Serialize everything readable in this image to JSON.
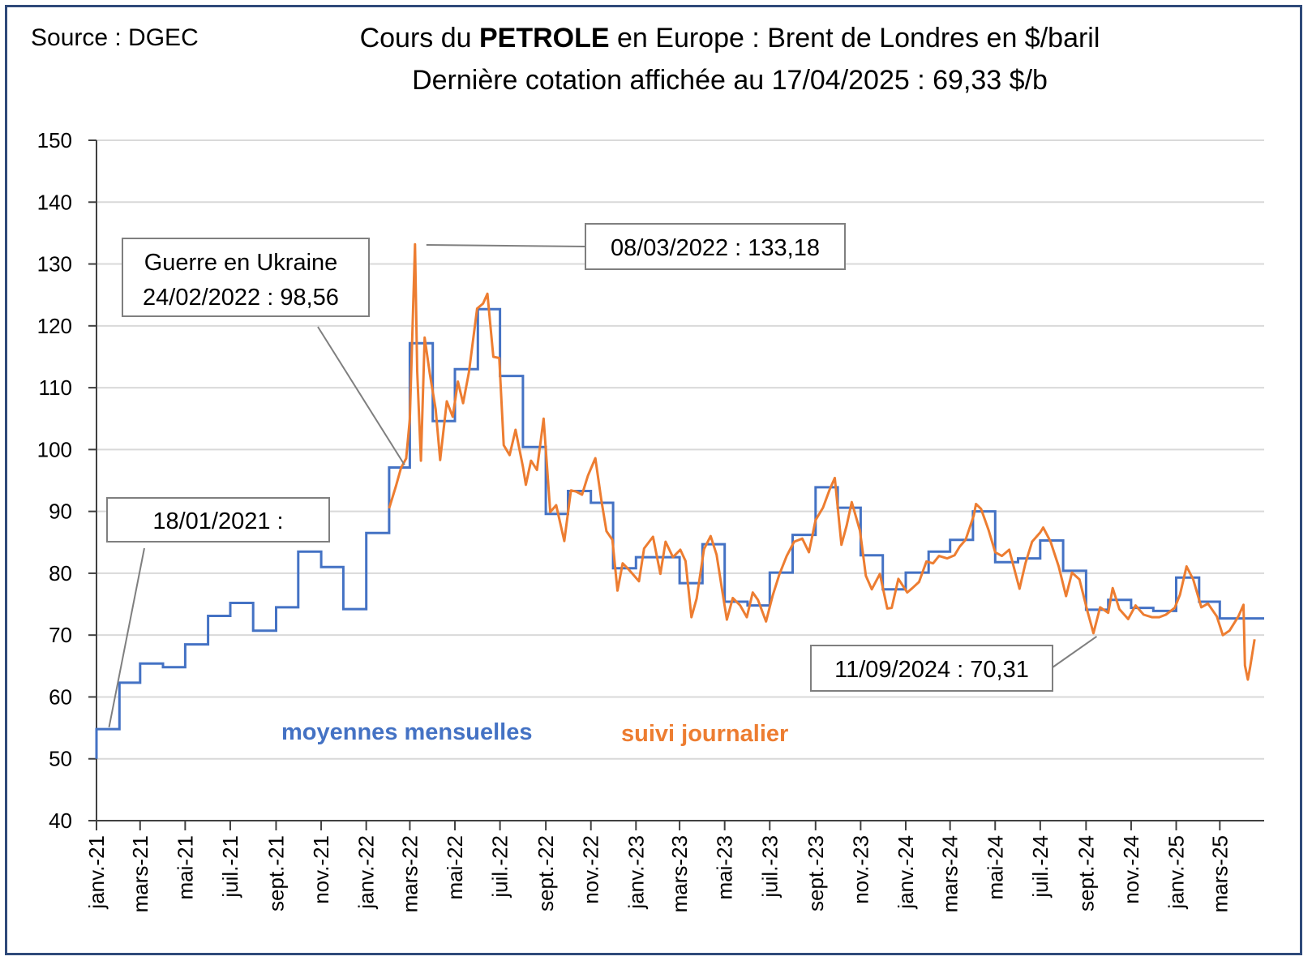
{
  "header": {
    "source": "Source : DGEC",
    "title_pre": "Cours du ",
    "title_bold": "PETROLE",
    "title_post": " en Europe : Brent de Londres en $/baril",
    "subtitle": "Dernière cotation affichée au 17/04/2025 : 69,33 $/b"
  },
  "colors": {
    "monthly": "#4472c4",
    "daily": "#ed7d31",
    "frame": "#2f4a7a",
    "grid": "#d9d9d9"
  },
  "chart_data": {
    "type": "line",
    "title": "Cours du PETROLE en Europe : Brent de Londres en $/baril",
    "ylim": [
      40,
      150
    ],
    "yticks": [
      40,
      50,
      60,
      70,
      80,
      90,
      100,
      110,
      120,
      130,
      140,
      150
    ],
    "xlim": [
      "2021-01-01",
      "2025-04-30"
    ],
    "xtick_labels": [
      "janv.-21",
      "mars-21",
      "mai-21",
      "juil.-21",
      "sept.-21",
      "nov.-21",
      "janv.-22",
      "mars-22",
      "mai-22",
      "juil.-22",
      "sept.-22",
      "nov.-22",
      "janv.-23",
      "mars-23",
      "mai-23",
      "juil.-23",
      "sept.-23",
      "nov.-23",
      "janv.-24",
      "mars-24",
      "mai-24",
      "juil.-24",
      "sept.-24",
      "nov.-24",
      "janv.-25",
      "mars-25"
    ],
    "grid": true,
    "series": [
      {
        "name": "moyennes mensuelles",
        "kind": "step",
        "months": [
          "2021-01",
          "2021-02",
          "2021-03",
          "2021-04",
          "2021-05",
          "2021-06",
          "2021-07",
          "2021-08",
          "2021-09",
          "2021-10",
          "2021-11",
          "2021-12",
          "2022-01",
          "2022-02",
          "2022-03",
          "2022-04",
          "2022-05",
          "2022-06",
          "2022-07",
          "2022-08",
          "2022-09",
          "2022-10",
          "2022-11",
          "2022-12",
          "2023-01",
          "2023-02",
          "2023-03",
          "2023-04",
          "2023-05",
          "2023-06",
          "2023-07",
          "2023-08",
          "2023-09",
          "2023-10",
          "2023-11",
          "2023-12",
          "2024-01",
          "2024-02",
          "2024-03",
          "2024-04",
          "2024-05",
          "2024-06",
          "2024-07",
          "2024-08",
          "2024-09",
          "2024-10",
          "2024-11",
          "2024-12",
          "2025-01",
          "2025-02",
          "2025-03",
          "2025-04"
        ],
        "values": [
          54.8,
          62.3,
          65.4,
          64.8,
          68.5,
          73.1,
          75.2,
          70.7,
          74.5,
          83.5,
          81.0,
          74.2,
          86.5,
          97.1,
          117.2,
          104.6,
          113.0,
          122.7,
          111.9,
          100.4,
          89.6,
          93.3,
          91.4,
          80.8,
          82.6,
          82.6,
          78.4,
          84.7,
          75.4,
          74.8,
          80.1,
          86.2,
          93.9,
          90.6,
          82.9,
          77.4,
          80.1,
          83.5,
          85.4,
          90.0,
          81.8,
          82.4,
          85.3,
          80.4,
          74.1,
          75.7,
          74.4,
          73.9,
          79.3,
          75.4,
          72.7,
          72.7
        ]
      },
      {
        "name": "suivi journalier",
        "kind": "line",
        "dates": [
          "2022-02-01",
          "2022-02-10",
          "2022-02-17",
          "2022-02-24",
          "2022-03-01",
          "2022-03-08",
          "2022-03-11",
          "2022-03-16",
          "2022-03-21",
          "2022-03-28",
          "2022-04-05",
          "2022-04-11",
          "2022-04-20",
          "2022-04-28",
          "2022-05-05",
          "2022-05-12",
          "2022-05-20",
          "2022-05-31",
          "2022-06-08",
          "2022-06-14",
          "2022-06-22",
          "2022-06-30",
          "2022-07-06",
          "2022-07-14",
          "2022-07-22",
          "2022-08-01",
          "2022-08-05",
          "2022-08-12",
          "2022-08-20",
          "2022-08-29",
          "2022-09-07",
          "2022-09-15",
          "2022-09-26",
          "2022-10-05",
          "2022-10-12",
          "2022-10-20",
          "2022-10-28",
          "2022-11-07",
          "2022-11-15",
          "2022-11-22",
          "2022-11-30",
          "2022-12-07",
          "2022-12-14",
          "2022-12-23",
          "2023-01-05",
          "2023-01-12",
          "2023-01-24",
          "2023-02-03",
          "2023-02-10",
          "2023-02-20",
          "2023-03-02",
          "2023-03-09",
          "2023-03-17",
          "2023-03-24",
          "2023-04-03",
          "2023-04-12",
          "2023-04-20",
          "2023-04-28",
          "2023-05-04",
          "2023-05-12",
          "2023-05-22",
          "2023-05-31",
          "2023-06-08",
          "2023-06-15",
          "2023-06-26",
          "2023-07-05",
          "2023-07-14",
          "2023-07-24",
          "2023-08-03",
          "2023-08-14",
          "2023-08-23",
          "2023-09-01",
          "2023-09-11",
          "2023-09-20",
          "2023-09-27",
          "2023-10-06",
          "2023-10-13",
          "2023-10-20",
          "2023-10-31",
          "2023-11-08",
          "2023-11-16",
          "2023-11-27",
          "2023-12-07",
          "2023-12-13",
          "2023-12-22",
          "2024-01-03",
          "2024-01-10",
          "2024-01-19",
          "2024-01-29",
          "2024-02-07",
          "2024-02-15",
          "2024-02-26",
          "2024-03-07",
          "2024-03-14",
          "2024-03-22",
          "2024-04-02",
          "2024-04-05",
          "2024-04-12",
          "2024-04-22",
          "2024-05-01",
          "2024-05-10",
          "2024-05-20",
          "2024-06-03",
          "2024-06-11",
          "2024-06-20",
          "2024-07-01",
          "2024-07-05",
          "2024-07-15",
          "2024-07-26",
          "2024-08-05",
          "2024-08-13",
          "2024-08-23",
          "2024-09-03",
          "2024-09-11",
          "2024-09-20",
          "2024-10-01",
          "2024-10-07",
          "2024-10-16",
          "2024-10-28",
          "2024-11-07",
          "2024-11-18",
          "2024-11-29",
          "2024-12-09",
          "2024-12-18",
          "2024-12-30",
          "2025-01-06",
          "2025-01-15",
          "2025-01-24",
          "2025-02-04",
          "2025-02-13",
          "2025-02-25",
          "2025-03-05",
          "2025-03-14",
          "2025-03-26",
          "2025-04-02",
          "2025-04-04",
          "2025-04-08",
          "2025-04-11",
          "2025-04-17"
        ],
        "values": [
          90.5,
          94.0,
          97.0,
          98.56,
          104.9,
          133.18,
          112.7,
          98.2,
          118.1,
          112.3,
          106.5,
          98.3,
          107.8,
          105.3,
          111.0,
          107.5,
          112.5,
          122.8,
          123.6,
          125.2,
          115.0,
          114.8,
          100.7,
          99.1,
          103.2,
          97.2,
          94.3,
          98.2,
          96.7,
          105.0,
          89.9,
          91.0,
          85.2,
          93.4,
          93.2,
          92.7,
          95.8,
          98.6,
          91.9,
          86.8,
          85.4,
          77.2,
          81.6,
          80.5,
          78.7,
          84.0,
          85.9,
          79.9,
          85.1,
          82.6,
          83.8,
          82.0,
          72.9,
          75.9,
          83.9,
          86.0,
          83.0,
          77.0,
          72.5,
          76.0,
          74.8,
          72.9,
          76.9,
          75.7,
          72.2,
          76.4,
          79.8,
          82.8,
          85.1,
          85.6,
          83.4,
          88.6,
          90.6,
          93.5,
          95.4,
          84.6,
          87.7,
          91.5,
          86.9,
          79.6,
          77.4,
          79.9,
          74.3,
          74.4,
          79.1,
          76.9,
          77.6,
          78.6,
          81.9,
          81.6,
          82.8,
          82.4,
          82.9,
          84.3,
          85.4,
          89.3,
          91.2,
          90.4,
          87.0,
          83.4,
          82.8,
          83.8,
          77.5,
          81.6,
          85.1,
          86.6,
          87.4,
          85.1,
          81.1,
          76.3,
          80.1,
          79.0,
          73.8,
          70.31,
          74.5,
          73.6,
          77.6,
          74.2,
          72.6,
          74.8,
          73.3,
          72.9,
          72.9,
          73.3,
          74.4,
          76.5,
          81.1,
          79.0,
          74.5,
          75.1,
          73.0,
          70.0,
          70.7,
          73.0,
          74.9,
          65.1,
          62.8,
          64.8,
          69.33
        ]
      }
    ],
    "annotations": [
      {
        "date": "2021-01-18",
        "value": 55.5,
        "label": "18/01/2021 :"
      },
      {
        "date": "2022-02-24",
        "value": 98.56,
        "label_line1": "Guerre en Ukraine",
        "label_line2": "24/02/2022 : 98,56"
      },
      {
        "date": "2022-03-08",
        "value": 133.18,
        "label": "08/03/2022 : 133,18"
      },
      {
        "date": "2024-09-11",
        "value": 70.31,
        "label": "11/09/2024 : 70,31"
      }
    ]
  }
}
